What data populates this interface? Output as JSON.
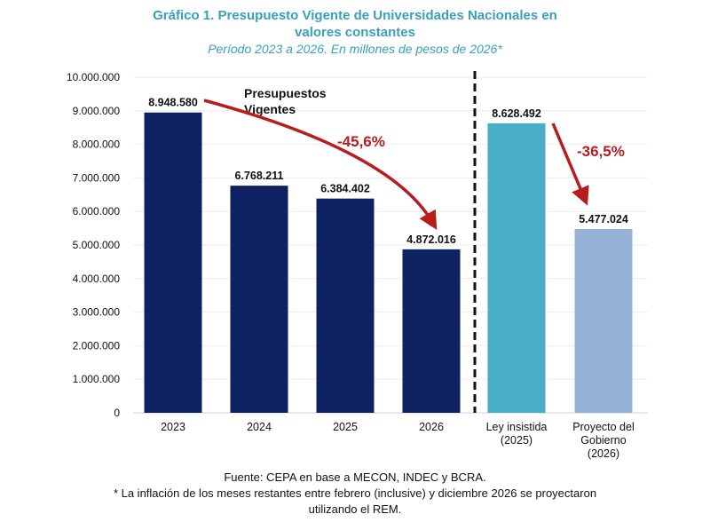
{
  "chart_data": {
    "type": "bar",
    "title": "Gráfico 1. Presupuesto Vigente de Universidades Nacionales en valores constantes",
    "subtitle": "Período 2023 a 2026. En millones de pesos de 2026*",
    "categories": [
      "2023",
      "2024",
      "2025",
      "2026",
      "Ley insistida\n(2025)",
      "Proyecto del\nGobierno\n(2026)"
    ],
    "values": [
      8948580,
      6768211,
      6384402,
      4872016,
      8628492,
      5477024
    ],
    "value_labels": [
      "8.948.580",
      "6.768.211",
      "6.384.402",
      "4.872.016",
      "8.628.492",
      "5.477.024"
    ],
    "bar_colors": [
      "#0e2160",
      "#0e2160",
      "#0e2160",
      "#0e2160",
      "#4aaec8",
      "#95b3d7"
    ],
    "ylim": [
      0,
      10000000
    ],
    "yticks": [
      "0",
      "1.000.000",
      "2.000.000",
      "3.000.000",
      "4.000.000",
      "5.000.000",
      "6.000.000",
      "7.000.000",
      "8.000.000",
      "9.000.000",
      "10.000.000"
    ],
    "grid": true,
    "annotations": {
      "group_label": "Presupuestos\nVigentes",
      "change_1": "-45,6%",
      "change_2": "-36,5%"
    },
    "arrow_color": "#b81c1c"
  },
  "footer": {
    "source": "Fuente: CEPA en base a MECON, INDEC y BCRA.",
    "note_line1": "* La inflación de los meses restantes entre febrero (inclusive) y diciembre 2026 se proyectaron",
    "note_line2": "utilizando el REM."
  }
}
